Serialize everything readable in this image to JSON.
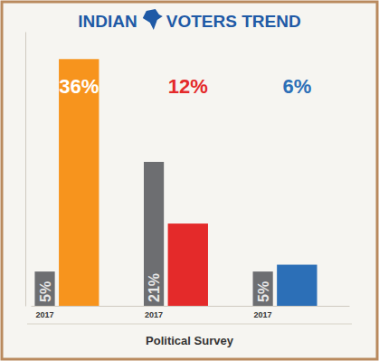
{
  "chart_data": {
    "type": "bar",
    "title": "INDIAN VOTERS TREND",
    "xlabel": "Political Survey",
    "categories": [
      null,
      null,
      null
    ],
    "series": [
      {
        "name": "2017",
        "color": "#6d6e71",
        "values": [
          5,
          21,
          5
        ],
        "value_labels": [
          "5%",
          "21%",
          "5%"
        ]
      },
      {
        "colors": [
          "#f7941d",
          "#e42a2a",
          "#2c6fb7"
        ],
        "values": [
          36,
          12,
          6
        ],
        "value_labels": [
          "36%",
          "12%",
          "6%"
        ]
      }
    ],
    "ylim": [
      0,
      40
    ],
    "yticks": [],
    "tick_labels": false,
    "data_labels": true
  }
}
